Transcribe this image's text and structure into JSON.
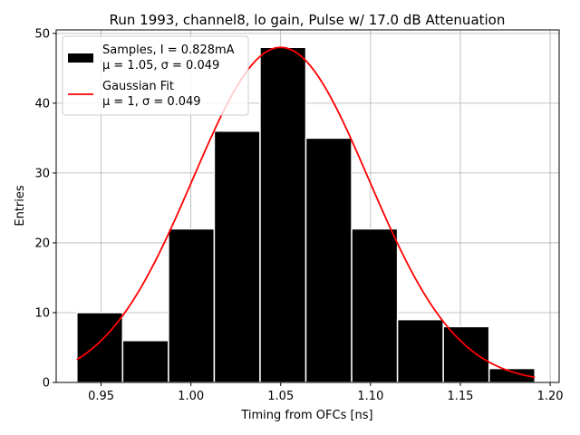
{
  "chart_data": {
    "type": "bar",
    "title": "Run 1993, channel8, lo gain, Pulse w/ 17.0 dB Attenuation",
    "xlabel": "Timing from OFCs [ns]",
    "ylabel": "Entries",
    "xlim": [
      0.925,
      1.205
    ],
    "ylim": [
      0,
      50.5
    ],
    "xticks": [
      0.95,
      1.0,
      1.05,
      1.1,
      1.15,
      1.2
    ],
    "xtick_labels": [
      "0.95",
      "1.00",
      "1.05",
      "1.10",
      "1.15",
      "1.20"
    ],
    "yticks": [
      0,
      10,
      20,
      30,
      40,
      50
    ],
    "ytick_labels": [
      "0",
      "10",
      "20",
      "30",
      "40",
      "50"
    ],
    "grid": true,
    "histogram": {
      "bin_edges": [
        0.9365,
        0.962,
        0.9875,
        1.013,
        1.0385,
        1.064,
        1.0895,
        1.115,
        1.1405,
        1.166,
        1.1915
      ],
      "counts": [
        10,
        6,
        22,
        36,
        48,
        35,
        22,
        9,
        8,
        2
      ],
      "color": "#000000",
      "edgecolor": "#ffffff"
    },
    "fit": {
      "amplitude": 48,
      "mu": 1.05,
      "sigma": 0.049,
      "x_range": [
        0.9365,
        1.1915
      ],
      "color": "#ff0000"
    },
    "legend": {
      "placement": "top-left",
      "entries": [
        {
          "line1": "Samples, I = 0.828mA",
          "line2": "μ = 1.05, σ = 0.049",
          "swatch": "patch"
        },
        {
          "line1": "Gaussian Fit",
          "line2": "μ = 1, σ = 0.049",
          "swatch": "line"
        }
      ]
    }
  }
}
